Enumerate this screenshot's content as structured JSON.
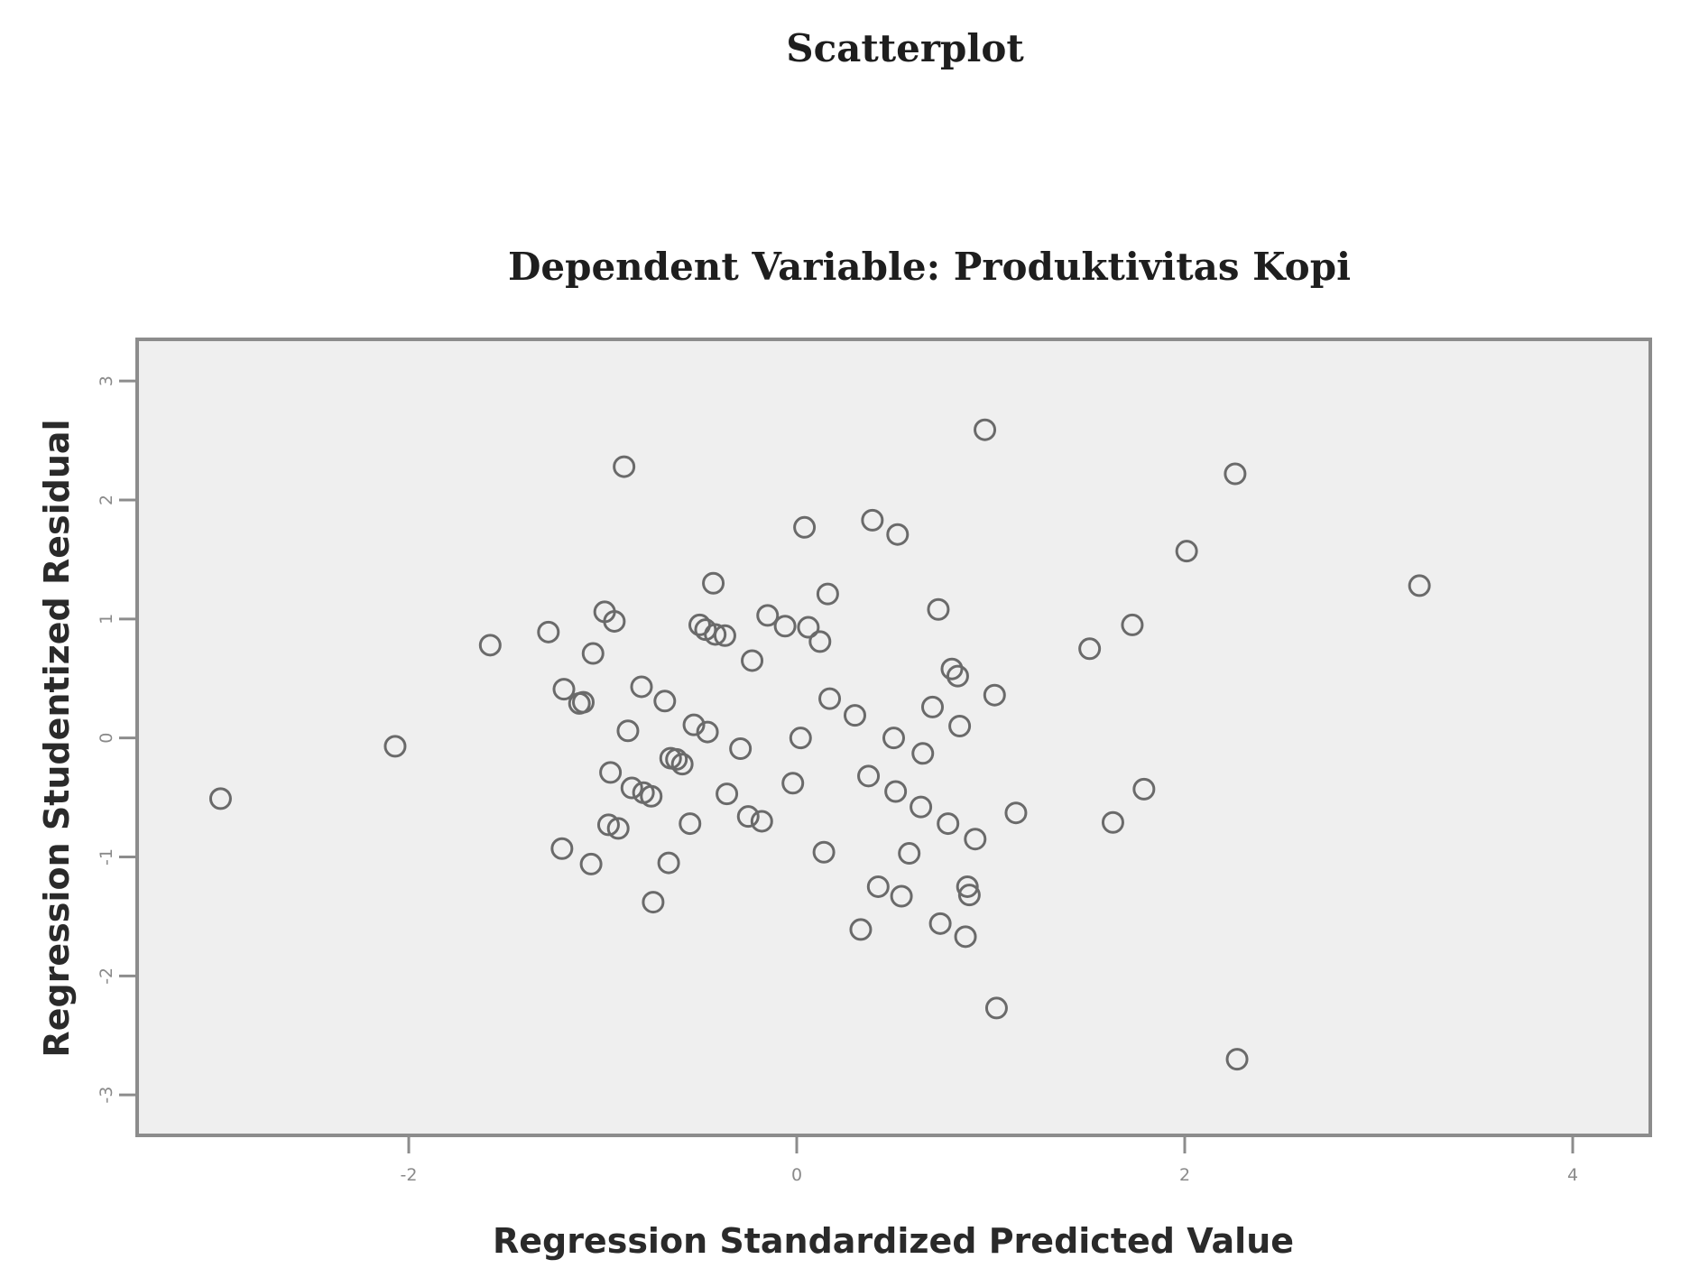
{
  "chart_data": {
    "type": "scatter",
    "title": "Scatterplot",
    "subtitle": "Dependent Variable: Produktivitas Kopi",
    "xlabel": "Regression Standardized Predicted Value",
    "ylabel": "Regression Studentized Residual",
    "xlim": [
      -3.4,
      4.4
    ],
    "ylim": [
      -3.34,
      3.35
    ],
    "xticks": [
      {
        "value": -2,
        "label": "-2"
      },
      {
        "value": 0,
        "label": "0"
      },
      {
        "value": 2,
        "label": "2"
      },
      {
        "value": 4,
        "label": "4"
      }
    ],
    "yticks": [
      {
        "value": 3,
        "label": "3"
      },
      {
        "value": 2,
        "label": "2"
      },
      {
        "value": 1,
        "label": "1"
      },
      {
        "value": 0,
        "label": "0"
      },
      {
        "value": -1,
        "label": "-1"
      },
      {
        "value": -2,
        "label": "-2"
      },
      {
        "value": -3,
        "label": "-3"
      }
    ],
    "grid": false,
    "points": [
      {
        "x": -2.97,
        "y": -0.51
      },
      {
        "x": -2.07,
        "y": -0.07
      },
      {
        "x": -1.58,
        "y": 0.78
      },
      {
        "x": -1.28,
        "y": 0.89
      },
      {
        "x": -1.21,
        "y": -0.93
      },
      {
        "x": -1.2,
        "y": 0.41
      },
      {
        "x": -1.12,
        "y": 0.29
      },
      {
        "x": -1.1,
        "y": 0.3
      },
      {
        "x": -1.06,
        "y": -1.06
      },
      {
        "x": -1.05,
        "y": 0.71
      },
      {
        "x": -0.99,
        "y": 1.06
      },
      {
        "x": -0.97,
        "y": -0.73
      },
      {
        "x": -0.96,
        "y": -0.29
      },
      {
        "x": -0.94,
        "y": 0.98
      },
      {
        "x": -0.92,
        "y": -0.76
      },
      {
        "x": -0.89,
        "y": 2.28
      },
      {
        "x": -0.87,
        "y": 0.06
      },
      {
        "x": -0.85,
        "y": -0.42
      },
      {
        "x": -0.8,
        "y": 0.43
      },
      {
        "x": -0.79,
        "y": -0.46
      },
      {
        "x": -0.75,
        "y": -0.49
      },
      {
        "x": -0.74,
        "y": -1.38
      },
      {
        "x": -0.68,
        "y": 0.31
      },
      {
        "x": -0.66,
        "y": -1.05
      },
      {
        "x": -0.65,
        "y": -0.17
      },
      {
        "x": -0.62,
        "y": -0.18
      },
      {
        "x": -0.59,
        "y": -0.22
      },
      {
        "x": -0.55,
        "y": -0.72
      },
      {
        "x": -0.53,
        "y": 0.11
      },
      {
        "x": -0.5,
        "y": 0.95
      },
      {
        "x": -0.47,
        "y": 0.91
      },
      {
        "x": -0.46,
        "y": 0.05
      },
      {
        "x": -0.43,
        "y": 1.3
      },
      {
        "x": -0.42,
        "y": 0.87
      },
      {
        "x": -0.37,
        "y": 0.86
      },
      {
        "x": -0.36,
        "y": -0.47
      },
      {
        "x": -0.29,
        "y": -0.09
      },
      {
        "x": -0.25,
        "y": -0.66
      },
      {
        "x": -0.23,
        "y": 0.65
      },
      {
        "x": -0.18,
        "y": -0.7
      },
      {
        "x": -0.15,
        "y": 1.03
      },
      {
        "x": -0.06,
        "y": 0.94
      },
      {
        "x": -0.02,
        "y": -0.38
      },
      {
        "x": 0.02,
        "y": 0.0
      },
      {
        "x": 0.04,
        "y": 1.77
      },
      {
        "x": 0.06,
        "y": 0.93
      },
      {
        "x": 0.12,
        "y": 0.81
      },
      {
        "x": 0.14,
        "y": -0.96
      },
      {
        "x": 0.16,
        "y": 1.21
      },
      {
        "x": 0.17,
        "y": 0.33
      },
      {
        "x": 0.3,
        "y": 0.19
      },
      {
        "x": 0.33,
        "y": -1.61
      },
      {
        "x": 0.37,
        "y": -0.32
      },
      {
        "x": 0.39,
        "y": 1.83
      },
      {
        "x": 0.42,
        "y": -1.25
      },
      {
        "x": 0.5,
        "y": 0.0
      },
      {
        "x": 0.51,
        "y": -0.45
      },
      {
        "x": 0.52,
        "y": 1.71
      },
      {
        "x": 0.54,
        "y": -1.33
      },
      {
        "x": 0.58,
        "y": -0.97
      },
      {
        "x": 0.64,
        "y": -0.58
      },
      {
        "x": 0.65,
        "y": -0.13
      },
      {
        "x": 0.7,
        "y": 0.26
      },
      {
        "x": 0.73,
        "y": 1.08
      },
      {
        "x": 0.74,
        "y": -1.56
      },
      {
        "x": 0.78,
        "y": -0.72
      },
      {
        "x": 0.8,
        "y": 0.58
      },
      {
        "x": 0.83,
        "y": 0.52
      },
      {
        "x": 0.84,
        "y": 0.1
      },
      {
        "x": 0.87,
        "y": -1.67
      },
      {
        "x": 0.88,
        "y": -1.25
      },
      {
        "x": 0.89,
        "y": -1.32
      },
      {
        "x": 0.92,
        "y": -0.85
      },
      {
        "x": 0.97,
        "y": 2.59
      },
      {
        "x": 1.02,
        "y": 0.36
      },
      {
        "x": 1.03,
        "y": -2.27
      },
      {
        "x": 1.13,
        "y": -0.63
      },
      {
        "x": 1.51,
        "y": 0.75
      },
      {
        "x": 1.63,
        "y": -0.71
      },
      {
        "x": 1.73,
        "y": 0.95
      },
      {
        "x": 1.79,
        "y": -0.43
      },
      {
        "x": 2.01,
        "y": 1.57
      },
      {
        "x": 2.26,
        "y": 2.22
      },
      {
        "x": 2.27,
        "y": -2.7
      },
      {
        "x": 3.21,
        "y": 1.28
      }
    ]
  }
}
